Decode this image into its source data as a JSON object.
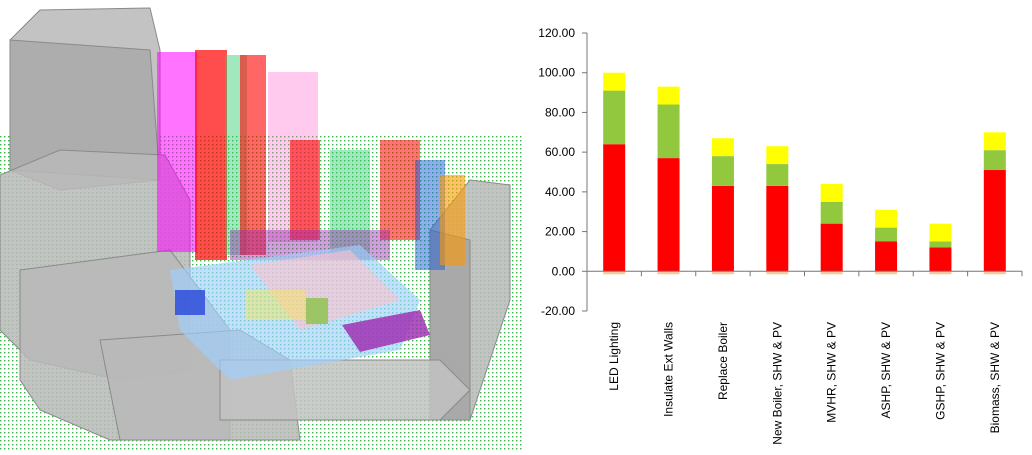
{
  "model_view": {
    "ground_color": "#3bb54a",
    "context_building_color": "#b4b4b4",
    "zone_colors": [
      "#ff0000",
      "#ff00ff",
      "#2ecc71",
      "#00bcd4",
      "#1e5bd8",
      "#ff9800",
      "#9c27b0",
      "#ffeb3b",
      "#9fd0ff"
    ]
  },
  "chart_data": {
    "type": "bar",
    "stacked": true,
    "categories": [
      "LED Lighting",
      "Insulate Ext Walls",
      "Replace Boiler",
      "New Boiler, SHW & PV",
      "MVHR, SHW & PV",
      "ASHP, SHW & PV",
      "GSHP, SHW & PV",
      "Biomass, SHW & PV"
    ],
    "series": [
      {
        "color": "#ff0000",
        "values": [
          64,
          57,
          43,
          43,
          24,
          15,
          12,
          51
        ]
      },
      {
        "color": "#92c83e",
        "values": [
          27,
          27,
          15,
          11,
          11,
          7,
          3,
          10
        ]
      },
      {
        "color": "#ffff00",
        "values": [
          9,
          9,
          9,
          9,
          9,
          9,
          9,
          9
        ]
      }
    ],
    "baseline_color": "#f5c9a0",
    "yticks": [
      "120.00",
      "100.00",
      "80.00",
      "60.00",
      "40.00",
      "20.00",
      "0.00",
      "-20.00"
    ],
    "ylim": [
      -20,
      120
    ],
    "grid": false,
    "legend": "none"
  }
}
